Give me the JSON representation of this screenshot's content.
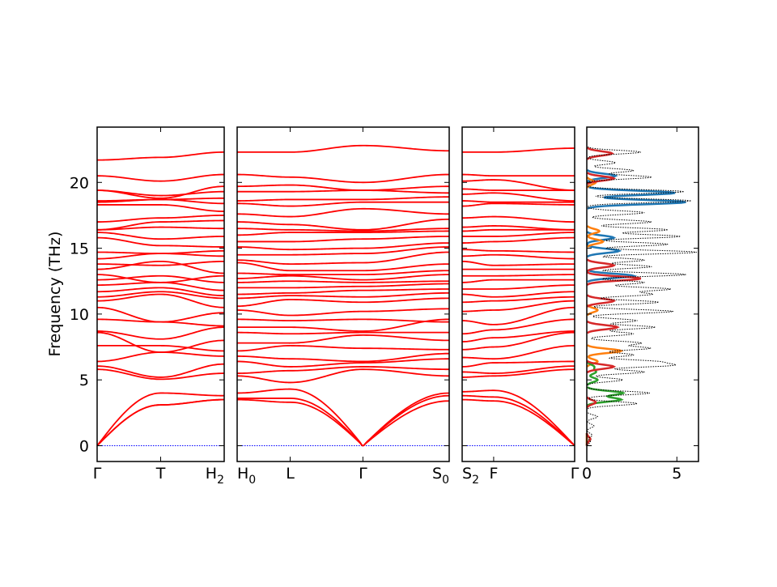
{
  "chart_data": {
    "type": "line",
    "ylabel": "Frequency (THz)",
    "ylim": [
      -1.2,
      24.2
    ],
    "y_ticks": [
      0,
      5,
      10,
      15,
      20
    ],
    "band_color": "#ff0000",
    "zero_line_color": "#0000ff",
    "panels": [
      {
        "id": "gamma-t-h2",
        "x_ticks": [
          {
            "pos": 0,
            "label": "Γ"
          },
          {
            "pos": 0.5,
            "label": "T"
          },
          {
            "pos": 1,
            "label": "H",
            "sub": "2"
          }
        ],
        "bands": [
          [
            0,
            3.1,
            3.5
          ],
          [
            0,
            3.1,
            3.5
          ],
          [
            0,
            4.0,
            3.8
          ],
          [
            5.8,
            5.05,
            5.5
          ],
          [
            6.05,
            5.2,
            6.2
          ],
          [
            6.4,
            7.1,
            6.8
          ],
          [
            7.6,
            7.6,
            7.2
          ],
          [
            8.6,
            7.1,
            8.0
          ],
          [
            8.7,
            8.1,
            9.0
          ],
          [
            9.6,
            9.4,
            9.1
          ],
          [
            10.5,
            9.4,
            10.1
          ],
          [
            11.0,
            11.5,
            10.5
          ],
          [
            11.3,
            11.7,
            11.2
          ],
          [
            11.7,
            12.0,
            11.4
          ],
          [
            12.2,
            12.4,
            11.8
          ],
          [
            12.6,
            12.9,
            12.4
          ],
          [
            13.0,
            12.4,
            12.9
          ],
          [
            13.4,
            14.0,
            13.1
          ],
          [
            13.8,
            13.7,
            14.0
          ],
          [
            14.2,
            14.6,
            14.4
          ],
          [
            14.7,
            14.6,
            14.8
          ],
          [
            15.8,
            15.2,
            15.1
          ],
          [
            16.2,
            15.7,
            15.9
          ],
          [
            16.4,
            16.6,
            16.5
          ],
          [
            16.4,
            17.0,
            17.1
          ],
          [
            17.0,
            17.3,
            17.5
          ],
          [
            18.3,
            18.3,
            17.8
          ],
          [
            18.5,
            18.7,
            18.4
          ],
          [
            18.6,
            18.7,
            18.8
          ],
          [
            19.4,
            19.0,
            19.3
          ],
          [
            19.4,
            18.8,
            19.7
          ],
          [
            20.5,
            20.1,
            20.6
          ],
          [
            21.7,
            21.9,
            22.3
          ]
        ]
      },
      {
        "id": "h0-l-gamma-s0",
        "x_ticks": [
          {
            "pos": 0,
            "label": "H",
            "sub": "0"
          },
          {
            "pos": 0.25,
            "label": "L"
          },
          {
            "pos": 0.593,
            "label": "Γ"
          },
          {
            "pos": 1,
            "label": "S",
            "sub": "0"
          }
        ],
        "bands": [
          [
            3.5,
            3.3,
            0,
            3.4
          ],
          [
            3.6,
            3.6,
            0,
            3.8
          ],
          [
            4.0,
            4.3,
            0,
            4.0
          ],
          [
            5.3,
            4.8,
            5.8,
            5.3
          ],
          [
            5.5,
            5.7,
            6.0,
            5.8
          ],
          [
            6.4,
            6.0,
            6.3,
            6.6
          ],
          [
            6.8,
            6.6,
            6.4,
            7.0
          ],
          [
            7.2,
            7.6,
            7.4,
            7.3
          ],
          [
            7.8,
            7.8,
            8.4,
            8.0
          ],
          [
            8.6,
            8.5,
            8.6,
            8.6
          ],
          [
            9.0,
            9.0,
            8.7,
            9.6
          ],
          [
            9.6,
            9.5,
            9.6,
            9.4
          ],
          [
            10.3,
            9.9,
            10.2,
            10.4
          ],
          [
            10.6,
            11.1,
            10.9,
            11.2
          ],
          [
            11.2,
            11.4,
            11.3,
            11.6
          ],
          [
            11.5,
            11.6,
            11.8,
            11.9
          ],
          [
            12.0,
            12.0,
            12.1,
            12.3
          ],
          [
            12.4,
            12.5,
            12.4,
            12.5
          ],
          [
            12.7,
            12.9,
            12.6,
            13.0
          ],
          [
            13.1,
            13.0,
            13.0,
            13.3
          ],
          [
            13.9,
            13.3,
            13.3,
            13.8
          ],
          [
            14.1,
            13.8,
            13.9,
            14.7
          ],
          [
            14.5,
            14.5,
            14.6,
            15.1
          ],
          [
            15.1,
            14.9,
            15.0,
            15.4
          ],
          [
            15.5,
            15.5,
            15.7,
            15.9
          ],
          [
            16.0,
            16.2,
            16.2,
            16.3
          ],
          [
            16.5,
            16.4,
            16.3,
            16.5
          ],
          [
            17.0,
            16.8,
            16.4,
            17.2
          ],
          [
            17.6,
            17.4,
            18.0,
            17.6
          ],
          [
            18.4,
            18.2,
            18.5,
            18.5
          ],
          [
            18.6,
            18.7,
            18.7,
            18.9
          ],
          [
            19.3,
            19.3,
            19.4,
            19.2
          ],
          [
            19.7,
            19.8,
            19.4,
            19.7
          ],
          [
            20.6,
            20.4,
            20.0,
            20.6
          ],
          [
            22.3,
            22.3,
            22.8,
            22.4
          ]
        ]
      },
      {
        "id": "s2-f-gamma",
        "x_ticks": [
          {
            "pos": 0,
            "label": "S",
            "sub": "2"
          },
          {
            "pos": 0.28,
            "label": "F"
          },
          {
            "pos": 1,
            "label": "Γ"
          }
        ],
        "bands": [
          [
            3.5,
            3.4,
            0
          ],
          [
            3.8,
            3.7,
            0
          ],
          [
            4.1,
            4.2,
            0
          ],
          [
            5.2,
            5.3,
            5.8
          ],
          [
            5.6,
            5.5,
            6.05
          ],
          [
            6.0,
            6.3,
            6.4
          ],
          [
            6.7,
            6.6,
            7.6
          ],
          [
            7.3,
            7.5,
            8.6
          ],
          [
            7.9,
            8.2,
            8.7
          ],
          [
            8.5,
            8.8,
            9.6
          ],
          [
            9.5,
            9.2,
            10.5
          ],
          [
            10.2,
            10.3,
            11.0
          ],
          [
            10.9,
            11.0,
            11.3
          ],
          [
            11.5,
            11.3,
            11.7
          ],
          [
            11.9,
            11.9,
            12.2
          ],
          [
            12.4,
            12.6,
            12.6
          ],
          [
            12.9,
            12.9,
            13.0
          ],
          [
            13.4,
            13.4,
            13.4
          ],
          [
            14.0,
            13.7,
            13.8
          ],
          [
            14.4,
            14.5,
            14.2
          ],
          [
            14.9,
            14.8,
            14.7
          ],
          [
            15.4,
            15.5,
            15.8
          ],
          [
            15.9,
            15.9,
            16.2
          ],
          [
            16.3,
            16.4,
            16.4
          ],
          [
            16.6,
            16.7,
            16.4
          ],
          [
            17.3,
            17.4,
            17.0
          ],
          [
            18.2,
            18.4,
            18.3
          ],
          [
            18.6,
            18.5,
            18.5
          ],
          [
            19.1,
            19.2,
            18.6
          ],
          [
            19.5,
            19.4,
            19.4
          ],
          [
            20.1,
            20.2,
            19.4
          ],
          [
            20.6,
            20.5,
            20.5
          ],
          [
            22.3,
            22.3,
            22.6
          ]
        ]
      }
    ],
    "dos_panel": {
      "xlim": [
        0,
        6.2
      ],
      "x_ticks": [
        0,
        5
      ],
      "total_color": "#000000",
      "series": [
        {
          "color": "#1f77b4",
          "peaks": [
            [
              12.9,
              2.6
            ],
            [
              14.8,
              1.8
            ],
            [
              15.8,
              1.5
            ],
            [
              18.5,
              5.5
            ],
            [
              19.2,
              4.9
            ],
            [
              20.5,
              1.6
            ]
          ]
        },
        {
          "color": "#ff7f0e",
          "peaks": [
            [
              6.4,
              0.6
            ],
            [
              7.2,
              1.9
            ],
            [
              10.3,
              0.6
            ],
            [
              15.5,
              0.9
            ],
            [
              16.3,
              0.7
            ],
            [
              20.0,
              0.5
            ]
          ]
        },
        {
          "color": "#2ca02c",
          "peaks": [
            [
              0.5,
              0.2
            ],
            [
              3.5,
              1.9
            ],
            [
              4.0,
              2.0
            ],
            [
              5.0,
              0.6
            ],
            [
              5.6,
              0.5
            ],
            [
              6.0,
              0.4
            ]
          ]
        },
        {
          "color": "#d62728",
          "peaks": [
            [
              0.5,
              0.2
            ],
            [
              3.3,
              0.5
            ],
            [
              6.0,
              1.5
            ],
            [
              9.0,
              1.7
            ],
            [
              11.0,
              1.5
            ],
            [
              12.7,
              3.0
            ],
            [
              13.7,
              1.5
            ],
            [
              20.3,
              1.5
            ],
            [
              22.2,
              1.4
            ]
          ]
        }
      ],
      "total_peaks": [
        [
          0.3,
          0.2
        ],
        [
          0.8,
          0.3
        ],
        [
          1.5,
          0.4
        ],
        [
          2.2,
          0.6
        ],
        [
          3.2,
          2.8
        ],
        [
          4.0,
          3.5
        ],
        [
          5.0,
          2.0
        ],
        [
          5.6,
          3.2
        ],
        [
          6.1,
          4.5
        ],
        [
          6.4,
          3.6
        ],
        [
          6.9,
          2.6
        ],
        [
          7.4,
          3.5
        ],
        [
          7.8,
          3.0
        ],
        [
          8.5,
          2.6
        ],
        [
          9.0,
          3.8
        ],
        [
          9.5,
          2.8
        ],
        [
          10.2,
          4.8
        ],
        [
          10.9,
          4.0
        ],
        [
          11.5,
          3.6
        ],
        [
          11.9,
          4.6
        ],
        [
          12.4,
          3.2
        ],
        [
          13.0,
          5.5
        ],
        [
          13.6,
          3.6
        ],
        [
          14.1,
          3.2
        ],
        [
          14.7,
          6.1
        ],
        [
          15.3,
          4.5
        ],
        [
          15.9,
          5.2
        ],
        [
          16.4,
          4.5
        ],
        [
          17.0,
          3.6
        ],
        [
          17.7,
          3.2
        ],
        [
          18.6,
          5.8
        ],
        [
          19.3,
          5.4
        ],
        [
          20.4,
          3.6
        ],
        [
          20.9,
          2.6
        ],
        [
          21.5,
          1.6
        ],
        [
          22.3,
          3.0
        ]
      ]
    }
  }
}
